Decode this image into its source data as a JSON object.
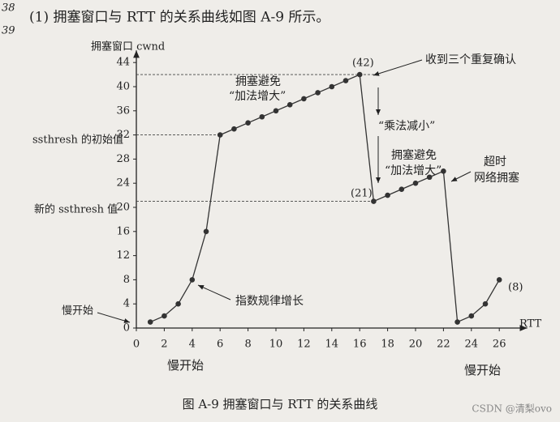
{
  "header": {
    "line_numbers": [
      "38",
      "39"
    ],
    "text": "(1) 拥塞窗口与 RTT 的关系曲线如图 A-9 所示。"
  },
  "chart_data": {
    "type": "line",
    "caption": "图 A-9 拥塞窗口与 RTT 的关系曲线",
    "y_label": "拥塞窗口 cwnd",
    "x_label": "RTT",
    "x": [
      1,
      2,
      3,
      4,
      5,
      6,
      7,
      8,
      9,
      10,
      11,
      12,
      13,
      14,
      15,
      16,
      17,
      18,
      19,
      20,
      21,
      22,
      23,
      24,
      25,
      26
    ],
    "series": [
      {
        "name": "cwnd",
        "color": "#333333",
        "values": [
          1,
          2,
          4,
          8,
          16,
          32,
          33,
          34,
          35,
          36,
          37,
          38,
          39,
          40,
          41,
          42,
          21,
          22,
          23,
          24,
          25,
          26,
          1,
          2,
          4,
          8
        ]
      }
    ],
    "xlim": [
      0,
      28
    ],
    "ylim": [
      0,
      46
    ],
    "xticks": [
      0,
      2,
      4,
      6,
      8,
      10,
      12,
      14,
      16,
      18,
      20,
      22,
      24,
      26
    ],
    "yticks": [
      0,
      4,
      8,
      12,
      16,
      20,
      24,
      28,
      32,
      36,
      40,
      44
    ],
    "annotations": {
      "initial_ssthresh": "ssthresh 的初始值",
      "new_ssthresh": "新的 ssthresh 值",
      "slow_start_y": "慢开始",
      "slow_start_x1": "慢开始",
      "slow_start_x2": "慢开始",
      "congestion_avoidance_1": "拥塞避免",
      "additive_increase_1": "“加法增大”",
      "congestion_avoidance_2": "拥塞避免",
      "additive_increase_2": "“加法增大”",
      "multiplicative_decrease": "“乘法减小”",
      "three_dup_ack": "收到三个重复确认",
      "timeout_1": "超时",
      "timeout_2": "网络拥塞",
      "exponential": "指数规律增长",
      "label_42": "(42)",
      "label_21": "(21)",
      "label_8": "(8)"
    },
    "watermark": "CSDN @清梨ovo"
  }
}
